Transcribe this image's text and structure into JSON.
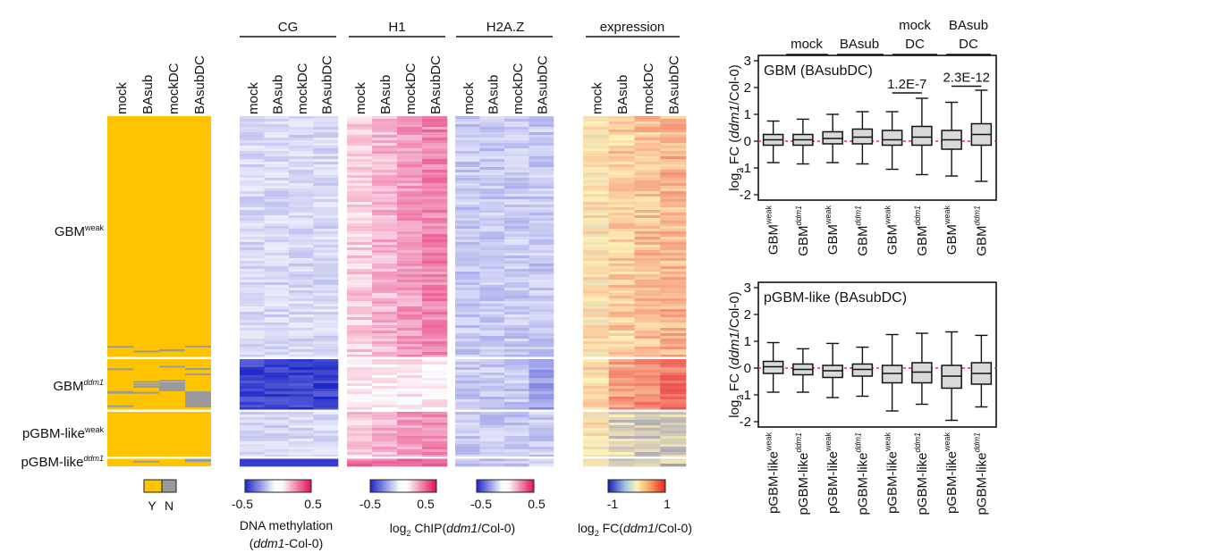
{
  "colors": {
    "yes": "#FFC400",
    "no": "#9A9A9A",
    "methyl_low": "#1E27C8",
    "methyl_high": "#E0115F",
    "expr_low": "#1C1FB0",
    "expr_mid": "#FFF3B8",
    "expr_high": "#E8212F",
    "median_line": "#E0228C"
  },
  "presence": {
    "columns": [
      "mock",
      "BAsub",
      "mockDC",
      "BAsubDC"
    ],
    "legend_yes": "Y",
    "legend_no": "N"
  },
  "row_groups": [
    {
      "name": "GBM",
      "sup": "weak"
    },
    {
      "name": "GBM",
      "sup": "ddm1"
    },
    {
      "name": "pGBM-like",
      "sup": "weak"
    },
    {
      "name": "pGBM-like",
      "sup": "ddm1"
    }
  ],
  "heatmaps": [
    {
      "header": "CG",
      "columns": [
        "mock",
        "BAsub",
        "mockDC",
        "BAsubDC"
      ]
    },
    {
      "header": "H1",
      "columns": [
        "mock",
        "BAsub",
        "mockDC",
        "BAsubDC"
      ]
    },
    {
      "header": "H2A.Z",
      "columns": [
        "mock",
        "BAsub",
        "mockDC",
        "BAsubDC"
      ]
    },
    {
      "header": "expression",
      "columns": [
        "mock",
        "BAsub",
        "mockDC",
        "BAsubDC"
      ]
    }
  ],
  "scales": {
    "methylation": {
      "min": "-0.5",
      "max": "0.5",
      "label1": "DNA methylation",
      "label2_open": "(",
      "label2_italic": "ddm1",
      "label2_rest": "-Col-0)"
    },
    "chip": {
      "min": "-0.5",
      "max": "0.5",
      "prefix": "log",
      "sub": "2",
      "mid": " ChIP(",
      "italic": "ddm1",
      "rest": "/Col-0)"
    },
    "h2az": {
      "min": "-0.5",
      "max": "0.5"
    },
    "expression": {
      "min": "-1",
      "max": "1",
      "prefix": "log",
      "sub": "2",
      "mid": " FC(",
      "italic": "ddm1",
      "rest": "/Col-0)"
    }
  },
  "boxplot_headers": {
    "groups": [
      {
        "line1": "",
        "line2": "mock"
      },
      {
        "line1": "",
        "line2": "BAsub"
      },
      {
        "line1": "mock",
        "line2": "DC"
      },
      {
        "line1": "BAsub",
        "line2": "DC"
      }
    ]
  },
  "chart_data": [
    {
      "type": "box",
      "title": "GBM (BAsubDC)",
      "ylabel_prefix": "log",
      "ylabel_sub": "2",
      "ylabel_mid": " FC (",
      "ylabel_italic": "ddm1",
      "ylabel_rest": "/Col-0)",
      "ylim": [
        -2.2,
        3.2
      ],
      "yticks": [
        "3",
        "2",
        "1",
        "0",
        "-1",
        "-2"
      ],
      "ytick_values": [
        3,
        2,
        1,
        0,
        -1,
        -2
      ],
      "reference_line": 0,
      "categories": [
        {
          "base": "GBM",
          "sup": "weak"
        },
        {
          "base": "GBM",
          "sup": "ddm1"
        },
        {
          "base": "GBM",
          "sup": "weak"
        },
        {
          "base": "GBM",
          "sup": "ddm1"
        },
        {
          "base": "GBM",
          "sup": "weak"
        },
        {
          "base": "GBM",
          "sup": "ddm1"
        },
        {
          "base": "GBM",
          "sup": "weak"
        },
        {
          "base": "GBM",
          "sup": "ddm1"
        }
      ],
      "boxes": [
        {
          "min": -0.8,
          "q1": -0.15,
          "median": 0.05,
          "q3": 0.25,
          "max": 0.75
        },
        {
          "min": -0.85,
          "q1": -0.15,
          "median": 0.05,
          "q3": 0.25,
          "max": 0.82
        },
        {
          "min": -0.8,
          "q1": -0.1,
          "median": 0.1,
          "q3": 0.35,
          "max": 1.0
        },
        {
          "min": -0.85,
          "q1": -0.1,
          "median": 0.15,
          "q3": 0.45,
          "max": 1.1
        },
        {
          "min": -1.05,
          "q1": -0.15,
          "median": 0.05,
          "q3": 0.4,
          "max": 1.1
        },
        {
          "min": -1.25,
          "q1": -0.15,
          "median": 0.15,
          "q3": 0.55,
          "max": 1.6
        },
        {
          "min": -1.3,
          "q1": -0.3,
          "median": 0.05,
          "q3": 0.4,
          "max": 1.45
        },
        {
          "min": -1.5,
          "q1": -0.15,
          "median": 0.25,
          "q3": 0.65,
          "max": 1.9
        }
      ],
      "annotations": [
        {
          "text": "1.2E-7",
          "from": 4,
          "to": 5,
          "y": 1.8
        },
        {
          "text": "2.3E-12",
          "from": 6,
          "to": 7,
          "y": 2.05
        }
      ]
    },
    {
      "type": "box",
      "title": "pGBM-like (BAsubDC)",
      "ylabel_prefix": "log",
      "ylabel_sub": "2",
      "ylabel_mid": " FC (",
      "ylabel_italic": "ddm1",
      "ylabel_rest": "/Col-0)",
      "ylim": [
        -2.2,
        3.2
      ],
      "yticks": [
        "3",
        "2",
        "1",
        "0",
        "-1",
        "-2"
      ],
      "ytick_values": [
        3,
        2,
        1,
        0,
        -1,
        -2
      ],
      "reference_line": 0,
      "categories": [
        {
          "base": "pGBM-like",
          "sup": "weak"
        },
        {
          "base": "pGBM-like",
          "sup": "ddm1"
        },
        {
          "base": "pGBM-like",
          "sup": "weak"
        },
        {
          "base": "pGBM-like",
          "sup": "ddm1"
        },
        {
          "base": "pGBM-like",
          "sup": "weak"
        },
        {
          "base": "pGBM-like",
          "sup": "ddm1"
        },
        {
          "base": "pGBM-like",
          "sup": "weak"
        },
        {
          "base": "pGBM-like",
          "sup": "ddm1"
        }
      ],
      "boxes": [
        {
          "min": -0.9,
          "q1": -0.2,
          "median": 0.05,
          "q3": 0.25,
          "max": 0.95
        },
        {
          "min": -0.9,
          "q1": -0.25,
          "median": -0.05,
          "q3": 0.15,
          "max": 0.72
        },
        {
          "min": -1.1,
          "q1": -0.35,
          "median": -0.1,
          "q3": 0.1,
          "max": 0.92
        },
        {
          "min": -1.05,
          "q1": -0.3,
          "median": -0.05,
          "q3": 0.15,
          "max": 0.78
        },
        {
          "min": -1.6,
          "q1": -0.55,
          "median": -0.2,
          "q3": 0.1,
          "max": 1.25
        },
        {
          "min": -1.35,
          "q1": -0.55,
          "median": -0.15,
          "q3": 0.2,
          "max": 1.3
        },
        {
          "min": -1.95,
          "q1": -0.75,
          "median": -0.3,
          "q3": 0.1,
          "max": 1.35
        },
        {
          "min": -1.45,
          "q1": -0.6,
          "median": -0.2,
          "q3": 0.2,
          "max": 1.22
        }
      ],
      "annotations": []
    }
  ]
}
